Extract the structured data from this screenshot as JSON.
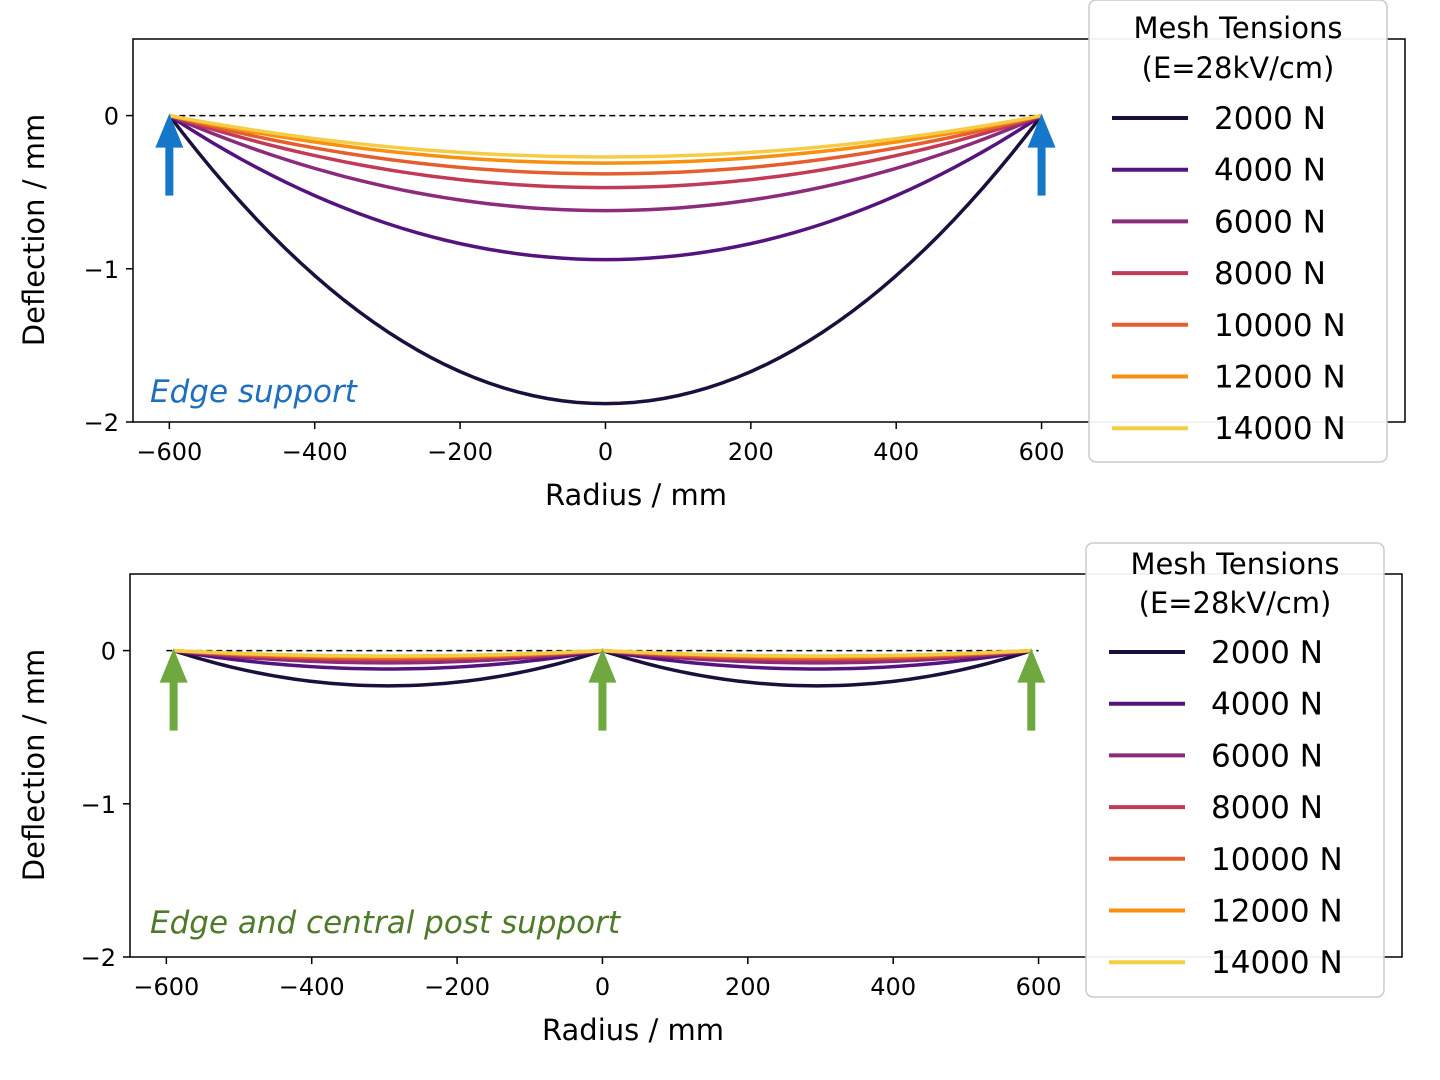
{
  "chart_data": [
    {
      "type": "line",
      "name": "edge-support",
      "xlabel": "Radius / mm",
      "ylabel": "Deflection / mm",
      "xlim": [
        -650,
        1100
      ],
      "ylim": [
        -2,
        0.5
      ],
      "xticks": [
        -600,
        -400,
        -200,
        0,
        200,
        400,
        600
      ],
      "xtick_labels": [
        "−600",
        "−400",
        "−200",
        "0",
        "200",
        "400",
        "600"
      ],
      "yticks": [
        0,
        -1,
        -2
      ],
      "ytick_labels": [
        "0",
        "−1",
        "−2"
      ],
      "legend_title": "Mesh Tensions\n(E=28kV/cm)",
      "legend_title_lines": [
        "Mesh Tensions",
        "(E=28kV/cm)"
      ],
      "legend_position": "right",
      "annotation": "Edge support",
      "annotation_color": "#1f6fbf",
      "arrow_color": "#1677c8",
      "supports": [
        -600,
        600
      ],
      "reference_line": {
        "y": 0,
        "x": [
          -600,
          600
        ],
        "style": "dashed"
      },
      "series": [
        {
          "name": "2000 N",
          "color": "#1c0f3d",
          "max_deflection": -1.88
        },
        {
          "name": "4000 N",
          "color": "#55137d",
          "max_deflection": -0.94
        },
        {
          "name": "6000 N",
          "color": "#8c2a7c",
          "max_deflection": -0.62
        },
        {
          "name": "8000 N",
          "color": "#c13a56",
          "max_deflection": -0.47
        },
        {
          "name": "10000 N",
          "color": "#e65d2f",
          "max_deflection": -0.38
        },
        {
          "name": "12000 N",
          "color": "#f88f0e",
          "max_deflection": -0.31
        },
        {
          "name": "14000 N",
          "color": "#f5cd45",
          "max_deflection": -0.27
        }
      ]
    },
    {
      "type": "line",
      "name": "edge-and-central-support",
      "xlabel": "Radius / mm",
      "ylabel": "Deflection / mm",
      "xlim": [
        -650,
        1100
      ],
      "ylim": [
        -2,
        0.5
      ],
      "xticks": [
        -600,
        -400,
        -200,
        0,
        200,
        400,
        600
      ],
      "xtick_labels": [
        "−600",
        "−400",
        "−200",
        "0",
        "200",
        "400",
        "600"
      ],
      "yticks": [
        0,
        -1,
        -2
      ],
      "ytick_labels": [
        "0",
        "−1",
        "−2"
      ],
      "legend_title": "Mesh Tensions\n(E=28kV/cm)",
      "legend_title_lines": [
        "Mesh Tensions",
        "(E=28kV/cm)"
      ],
      "legend_position": "right",
      "annotation": "Edge and central post support",
      "annotation_color": "#4f7a2a",
      "arrow_color": "#6fa83f",
      "supports": [
        -590,
        0,
        590
      ],
      "reference_line": {
        "y": 0,
        "x": [
          -600,
          600
        ],
        "style": "dashed"
      },
      "series": [
        {
          "name": "2000 N",
          "color": "#1c0f3d",
          "max_deflection": -0.23
        },
        {
          "name": "4000 N",
          "color": "#55137d",
          "max_deflection": -0.12
        },
        {
          "name": "6000 N",
          "color": "#8c2a7c",
          "max_deflection": -0.08
        },
        {
          "name": "8000 N",
          "color": "#c13a56",
          "max_deflection": -0.06
        },
        {
          "name": "10000 N",
          "color": "#e65d2f",
          "max_deflection": -0.05
        },
        {
          "name": "12000 N",
          "color": "#f88f0e",
          "max_deflection": -0.04
        },
        {
          "name": "14000 N",
          "color": "#f5cd45",
          "max_deflection": -0.035
        }
      ]
    }
  ]
}
